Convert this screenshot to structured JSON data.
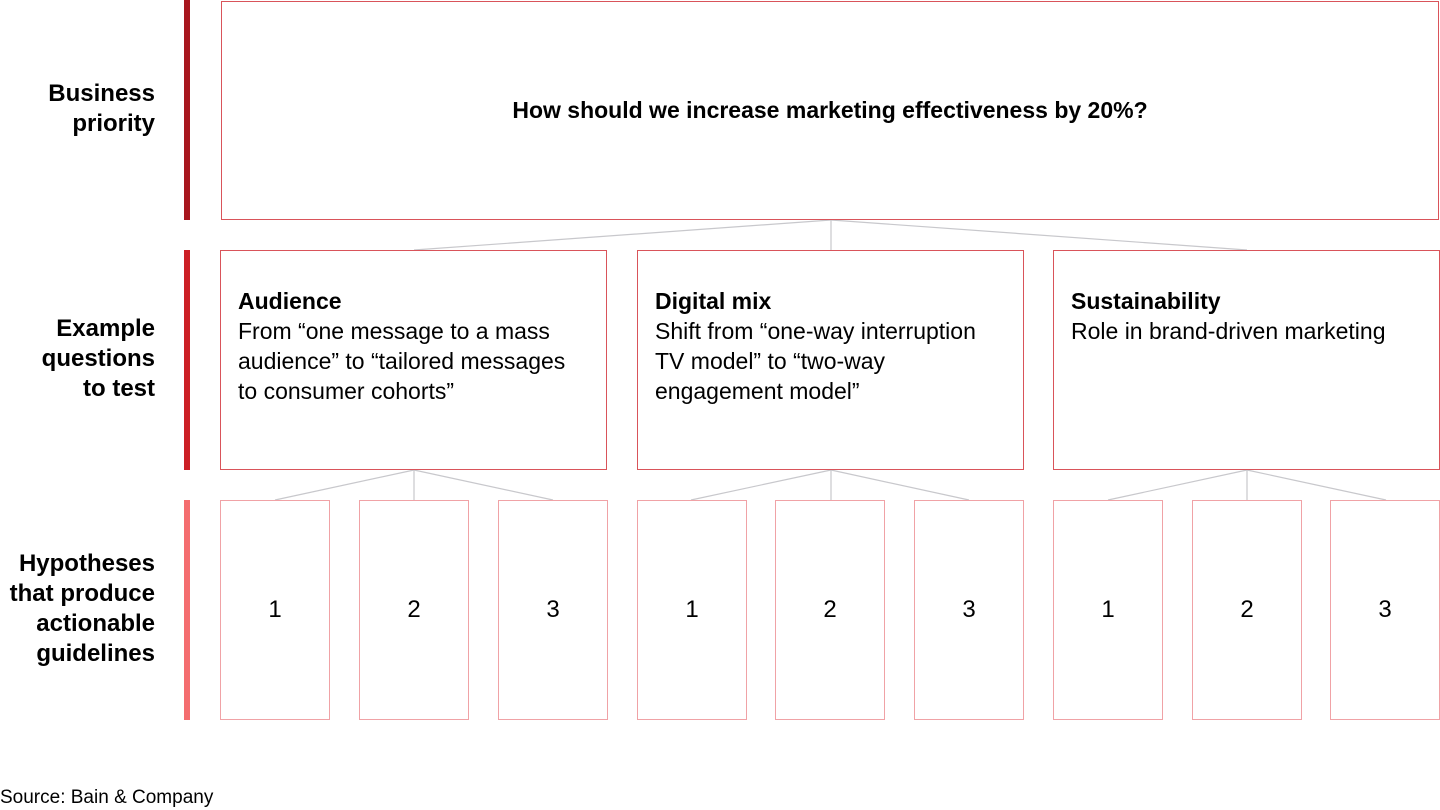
{
  "rows": [
    {
      "label": "Business\npriority",
      "bar_color": "#a8161e"
    },
    {
      "label": "Example\nquestions\nto test",
      "bar_color": "#cc1f26"
    },
    {
      "label": "Hypotheses\nthat produce\nactionable\nguidelines",
      "bar_color": "#f46d6f"
    }
  ],
  "priority": {
    "text": "How should we increase marketing effectiveness by 20%?"
  },
  "questions": [
    {
      "title": "Audience",
      "description": "From “one message to a mass audience” to “tailored messages to consumer cohorts”"
    },
    {
      "title": "Digital mix",
      "description": "Shift from “one-way interruption TV model” to “two-way engagement model”"
    },
    {
      "title": "Sustainability",
      "description": "Role in brand-driven marketing"
    }
  ],
  "hypotheses": [
    [
      "1",
      "2",
      "3"
    ],
    [
      "1",
      "2",
      "3"
    ],
    [
      "1",
      "2",
      "3"
    ]
  ],
  "colors": {
    "box_border": "#d9545a",
    "hypothesis_border": "#f0a2a6",
    "connector": "#c8c8cc"
  },
  "source": "Source: Bain & Company"
}
